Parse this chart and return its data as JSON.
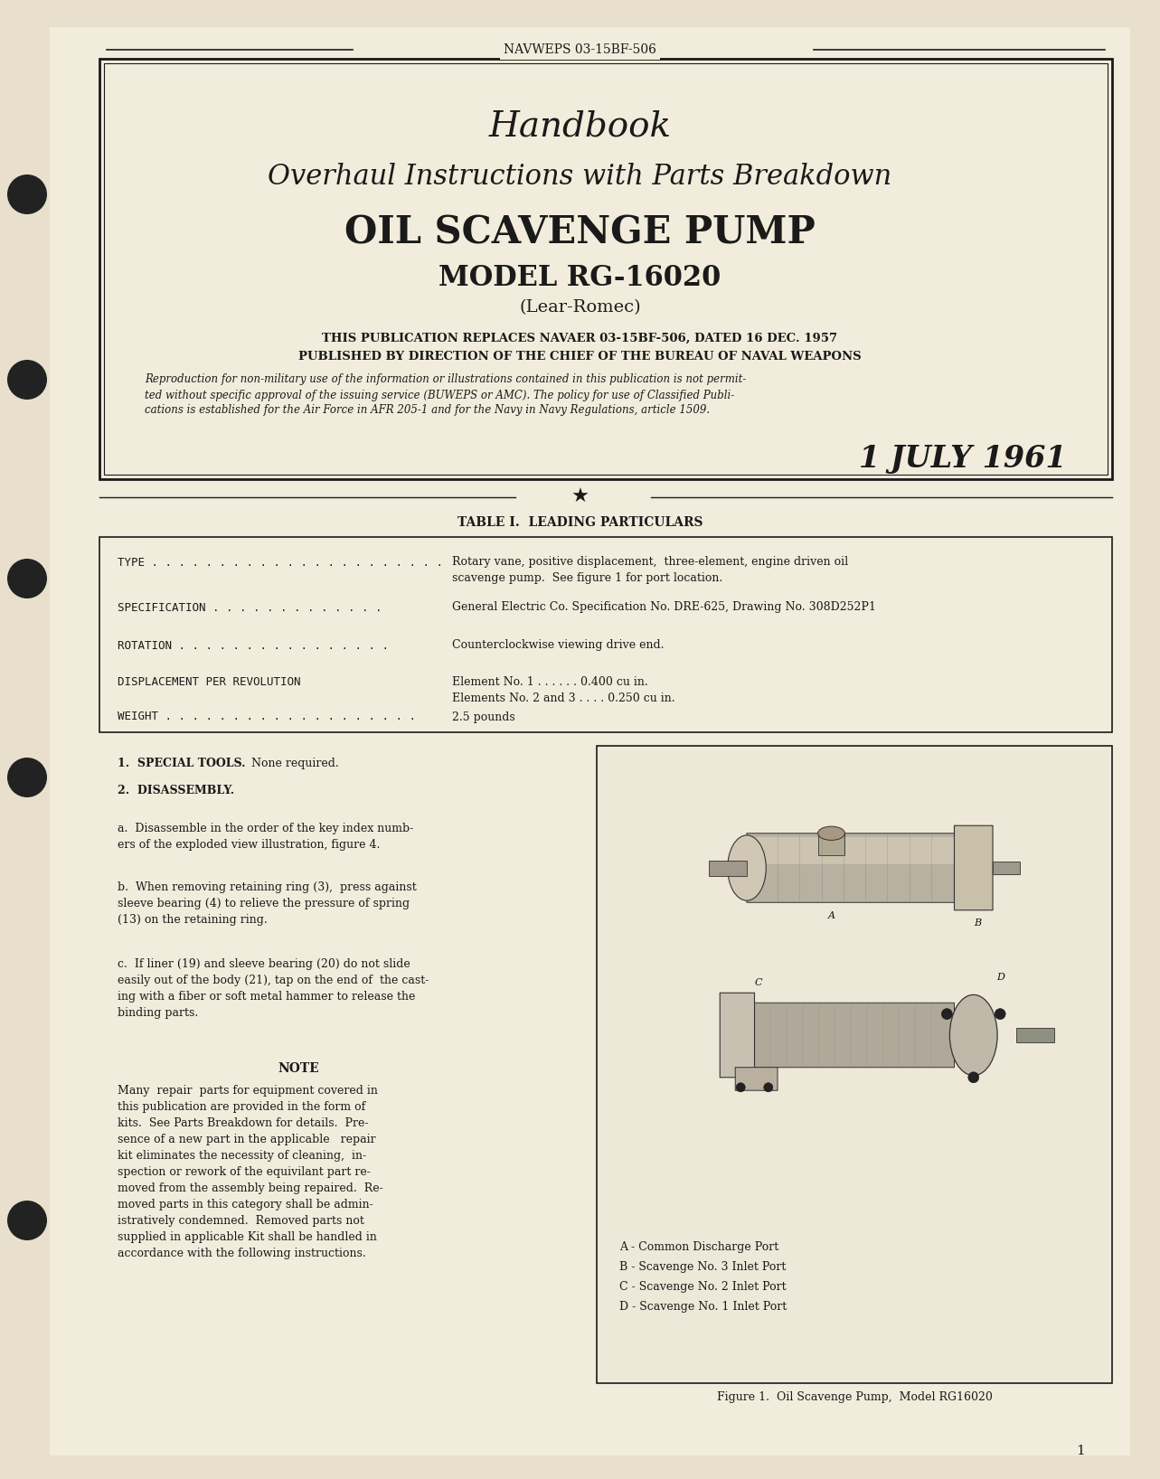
{
  "bg_color": "#e8e0cc",
  "page_color": "#f2ecdc",
  "text_color": "#1a1a1a",
  "header_doc_num": "NAVWEPS 03-15BF-506",
  "title_line1": "Handbook",
  "title_line2": "Overhaul Instructions with Parts Breakdown",
  "title_line3": "OIL SCAVENGE PUMP",
  "title_line4": "MODEL RG-16020",
  "title_line5": "(Lear-Romec)",
  "pub_line1": "THIS PUBLICATION REPLACES NAVAER 03-15BF-506, DATED 16 DEC. 1957",
  "pub_line2": "PUBLISHED BY DIRECTION OF THE CHIEF OF THE BUREAU OF NAVAL WEAPONS",
  "italic_text1": "Reproduction for non-military use of the information or illustrations contained in this publication is not permit-",
  "italic_text2": "ted without specific approval of the issuing service (BUWEPS or AMC). The policy for use of Classified Publi-",
  "italic_text3": "cations is established for the Air Force in AFR 205-1 and for the Navy in Navy Regulations, article 1509.",
  "date_text": "1 JULY 1961",
  "table_title": "TABLE I.  LEADING PARTICULARS",
  "section1_title": "1.  SPECIAL TOOLS.",
  "section1_text": "None required.",
  "section2_title": "2.  DISASSEMBLY.",
  "para_a_title": "a.",
  "para_a_text": " Disassemble in the order of the key index numb-\ners of the exploded view illustration, figure 4.",
  "para_b_title": "b.",
  "para_b_text": " When removing retaining ring (3),  press against\nsleeve bearing (4) to relieve the pressure of spring\n(13) on the retaining ring.",
  "para_c_title": "c.",
  "para_c_text": " If liner (19) and sleeve bearing (20) do not slide\neasily out of the body (21), tap on the end of  the cast-\ning with a fiber or soft metal hammer to release the\nbinding parts.",
  "note_title": "NOTE",
  "note_text": "Many  repair  parts for equipment covered in\nthis publication are provided in the form of\nkits.  See Parts Breakdown for details.  Pre-\nsence of a new part in the applicable   repair\nkit eliminates the necessity of cleaning,  in-\nspection or rework of the equivilant part re-\nmoved from the assembly being repaired.  Re-\nmoved parts in this category shall be admin-\nistratively condemned.  Removed parts not\nsupplied in applicable Kit shall be handled in\naccordance with the following instructions.",
  "figure_caption": "Figure 1.  Oil Scavenge Pump,  Model RG16020",
  "figure_legend": [
    "A - Common Discharge Port",
    "B - Scavenge No. 3 Inlet Port",
    "C - Scavenge No. 2 Inlet Port",
    "D - Scavenge No. 1 Inlet Port"
  ],
  "page_number": "1"
}
